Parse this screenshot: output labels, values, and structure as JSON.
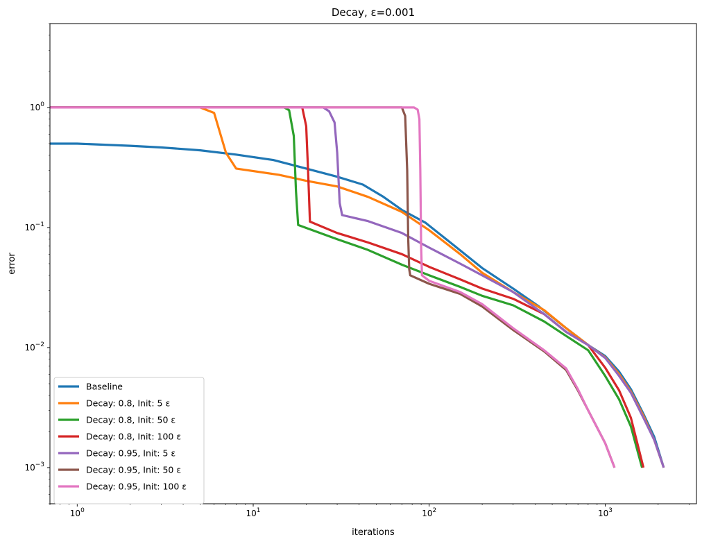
{
  "chart_data": {
    "type": "line",
    "title": "Decay, ε=0.001",
    "xlabel": "iterations",
    "ylabel": "error",
    "xscale": "log",
    "yscale": "log",
    "xlim": [
      0.7,
      3300
    ],
    "ylim": [
      0.0005,
      5
    ],
    "x_ticks": [
      {
        "value": 1,
        "base": "10",
        "exp": "0"
      },
      {
        "value": 10,
        "base": "10",
        "exp": "1"
      },
      {
        "value": 100,
        "base": "10",
        "exp": "2"
      },
      {
        "value": 1000,
        "base": "10",
        "exp": "3"
      }
    ],
    "y_ticks": [
      {
        "value": 0.001,
        "base": "10",
        "exp": "−3"
      },
      {
        "value": 0.01,
        "base": "10",
        "exp": "−2"
      },
      {
        "value": 0.1,
        "base": "10",
        "exp": "−1"
      },
      {
        "value": 1,
        "base": "10",
        "exp": "0"
      }
    ],
    "grid": false,
    "legend_position": "lower-left",
    "series": [
      {
        "name": "Baseline",
        "color": "#1f77b4",
        "x": [
          0.7,
          1,
          2,
          3,
          5,
          8,
          13,
          20,
          30,
          42,
          55,
          70,
          95,
          140,
          200,
          300,
          420,
          600,
          800,
          1000,
          1200,
          1400,
          1650,
          1900,
          2150
        ],
        "y": [
          0.5,
          0.5,
          0.48,
          0.465,
          0.44,
          0.405,
          0.365,
          0.31,
          0.265,
          0.228,
          0.18,
          0.14,
          0.11,
          0.07,
          0.046,
          0.031,
          0.022,
          0.0145,
          0.0105,
          0.0085,
          0.0063,
          0.0045,
          0.0028,
          0.0018,
          0.001
        ]
      },
      {
        "name": "Decay: 0.8, Init: 5 ε",
        "color": "#ff7f0e",
        "x": [
          0.7,
          5,
          6,
          7,
          8,
          14,
          20,
          30,
          45,
          70,
          100,
          150,
          200,
          300,
          450,
          600,
          800,
          1000,
          1200,
          1400,
          1650,
          1900,
          2150
        ],
        "y": [
          1.0,
          1.0,
          0.9,
          0.42,
          0.31,
          0.275,
          0.245,
          0.22,
          0.18,
          0.135,
          0.095,
          0.06,
          0.042,
          0.029,
          0.0205,
          0.0145,
          0.0105,
          0.0083,
          0.006,
          0.0043,
          0.0027,
          0.0017,
          0.001
        ]
      },
      {
        "name": "Decay: 0.8, Init: 50 ε",
        "color": "#2ca02c",
        "x": [
          0.7,
          15,
          16,
          17,
          17.5,
          18,
          30,
          45,
          70,
          100,
          150,
          200,
          300,
          450,
          600,
          800,
          1000,
          1200,
          1400,
          1620
        ],
        "y": [
          1.0,
          1.0,
          0.95,
          0.58,
          0.2,
          0.105,
          0.08,
          0.065,
          0.049,
          0.04,
          0.032,
          0.027,
          0.0225,
          0.0165,
          0.0125,
          0.0095,
          0.0058,
          0.0037,
          0.0022,
          0.001
        ]
      },
      {
        "name": "Decay: 0.8, Init: 100 ε",
        "color": "#d62728",
        "x": [
          0.7,
          19,
          20,
          20.5,
          21,
          30,
          45,
          70,
          100,
          150,
          200,
          300,
          450,
          600,
          800,
          1000,
          1200,
          1400,
          1650
        ],
        "y": [
          1.0,
          1.0,
          0.7,
          0.3,
          0.112,
          0.09,
          0.075,
          0.06,
          0.047,
          0.037,
          0.031,
          0.0255,
          0.019,
          0.0135,
          0.0105,
          0.0068,
          0.0044,
          0.0026,
          0.001
        ]
      },
      {
        "name": "Decay: 0.95, Init: 5 ε",
        "color": "#9467bd",
        "x": [
          0.7,
          25,
          27,
          29,
          30,
          31,
          32,
          45,
          70,
          100,
          150,
          200,
          300,
          450,
          600,
          800,
          1000,
          1200,
          1400,
          1650,
          1900,
          2150
        ],
        "y": [
          1.0,
          1.0,
          0.93,
          0.75,
          0.42,
          0.16,
          0.127,
          0.113,
          0.09,
          0.068,
          0.05,
          0.04,
          0.029,
          0.019,
          0.0135,
          0.0105,
          0.0082,
          0.0058,
          0.0042,
          0.0026,
          0.0017,
          0.001
        ]
      },
      {
        "name": "Decay: 0.95, Init: 50 ε",
        "color": "#8c564b",
        "x": [
          0.7,
          70,
          73,
          75,
          76,
          77,
          78,
          100,
          150,
          200,
          300,
          450,
          600,
          700,
          800,
          1000,
          1130
        ],
        "y": [
          1.0,
          1.0,
          0.85,
          0.3,
          0.08,
          0.045,
          0.04,
          0.034,
          0.028,
          0.022,
          0.014,
          0.0093,
          0.0065,
          0.0044,
          0.003,
          0.0016,
          0.001
        ]
      },
      {
        "name": "Decay: 0.95, Init: 100 ε",
        "color": "#e377c2",
        "x": [
          0.7,
          82,
          86,
          88,
          89,
          90,
          91,
          100,
          150,
          200,
          300,
          450,
          600,
          700,
          800,
          1000,
          1130
        ],
        "y": [
          1.0,
          1.0,
          0.96,
          0.8,
          0.3,
          0.07,
          0.04,
          0.036,
          0.029,
          0.023,
          0.0145,
          0.0095,
          0.0067,
          0.0045,
          0.003,
          0.0016,
          0.001
        ]
      }
    ]
  }
}
